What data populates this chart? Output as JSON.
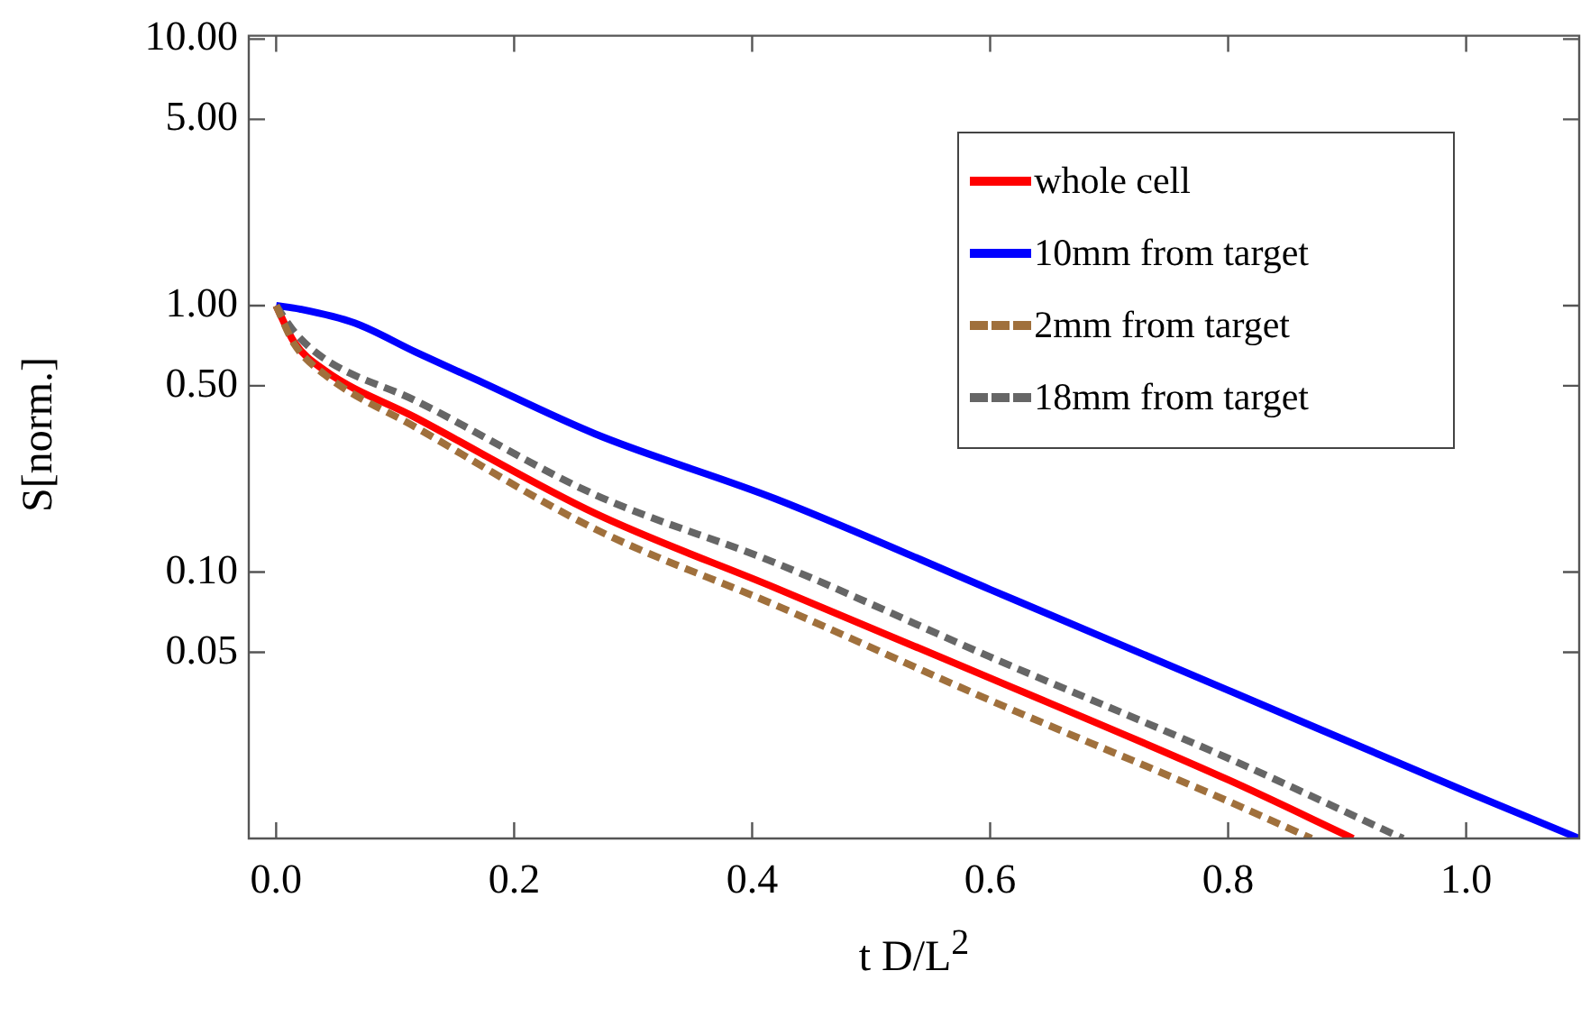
{
  "chart_data": {
    "type": "line",
    "xlabel": "t D/L$^{2}$",
    "ylabel": "S[norm.]",
    "log": "y",
    "grid": false,
    "legend": "top right",
    "line_style": "solid",
    "marker": "none",
    "xlim": [
      -0.023,
      1.095
    ],
    "xticks": [
      {
        "value": 0,
        "label": "0.0"
      },
      {
        "value": 0.2,
        "label": "0.2"
      },
      {
        "value": 0.4,
        "label": "0.4"
      },
      {
        "value": 0.6,
        "label": "0.6"
      },
      {
        "value": 0.8,
        "label": "0.8"
      },
      {
        "value": 1,
        "label": "1.0"
      }
    ],
    "ylim": [
      0.01,
      10.3
    ],
    "yticks": [
      {
        "value": 0.05,
        "label": "0.05"
      },
      {
        "value": 0.1,
        "label": "0.10"
      },
      {
        "value": 0.5,
        "label": "0.50"
      },
      {
        "value": 1,
        "label": "1.00"
      },
      {
        "value": 5,
        "label": "5.00"
      },
      {
        "value": 10,
        "label": "10.00"
      }
    ],
    "series": [
      {
        "name": "whole cell",
        "color": "#ff0000",
        "x": [
          0,
          0.015,
          0.041,
          0.117,
          0.268,
          0.42,
          0.6,
          0.8,
          0.905
        ],
        "values": [
          1,
          0.73,
          0.57,
          0.38,
          0.166,
          0.087,
          0.04,
          0.0166,
          0.01
        ]
      },
      {
        "name": "10mm from target",
        "color": "#0000ff",
        "x": [
          0,
          0.02,
          0.066,
          0.117,
          0.167,
          0.268,
          0.42,
          0.6,
          0.8,
          1.0,
          1.095
        ],
        "values": [
          1,
          0.97,
          0.86,
          0.67,
          0.53,
          0.33,
          0.188,
          0.086,
          0.036,
          0.015,
          0.01
        ]
      },
      {
        "name": "2mm from target",
        "color": "#a0703c",
        "line_style": "dashed",
        "x": [
          0,
          0.015,
          0.041,
          0.117,
          0.268,
          0.42,
          0.6,
          0.8,
          0.87
        ],
        "values": [
          1,
          0.72,
          0.55,
          0.35,
          0.145,
          0.075,
          0.033,
          0.0138,
          0.01
        ]
      },
      {
        "name": "18mm from target",
        "color": "#666666",
        "line_style": "dashed",
        "x": [
          0,
          0.015,
          0.041,
          0.117,
          0.268,
          0.42,
          0.6,
          0.8,
          0.947
        ],
        "values": [
          1,
          0.8,
          0.63,
          0.44,
          0.195,
          0.108,
          0.048,
          0.02,
          0.01
        ]
      }
    ]
  }
}
